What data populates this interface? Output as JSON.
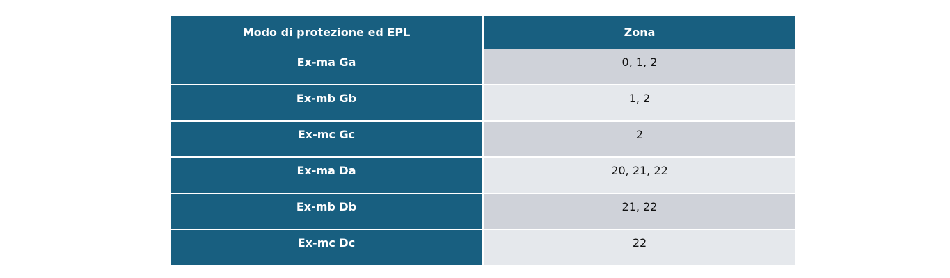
{
  "table": {
    "header": [
      "Modo di protezione ed EPL",
      "Zona"
    ],
    "rows": [
      [
        "Ex-ma Ga",
        "0, 1, 2"
      ],
      [
        "Ex-mb Gb",
        "1, 2"
      ],
      [
        "Ex-mc Gc",
        "2"
      ],
      [
        "Ex-ma Da",
        "20, 21, 22"
      ],
      [
        "Ex-mb Db",
        "21, 22"
      ],
      [
        "Ex-mc Dc",
        "22"
      ]
    ]
  }
}
